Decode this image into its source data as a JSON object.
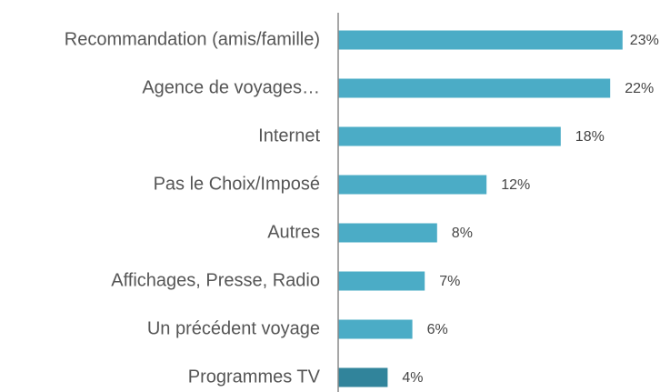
{
  "chart_data": {
    "type": "barh",
    "categories": [
      "Recommandation (amis/famille)",
      "Agence de voyages…",
      "Internet",
      "Pas le Choix/Imposé",
      "Autres",
      "Affichages, Presse, Radio",
      "Un précédent voyage",
      "Programmes TV"
    ],
    "values": [
      23,
      22,
      18,
      12,
      8,
      7,
      6,
      4
    ],
    "value_labels": [
      "23%",
      "22%",
      "18%",
      "12%",
      "8%",
      "7%",
      "6%",
      "4%"
    ],
    "colors": [
      "#4bacc6",
      "#4bacc6",
      "#4bacc6",
      "#4bacc6",
      "#4bacc6",
      "#4bacc6",
      "#4bacc6",
      "#31849b"
    ]
  }
}
